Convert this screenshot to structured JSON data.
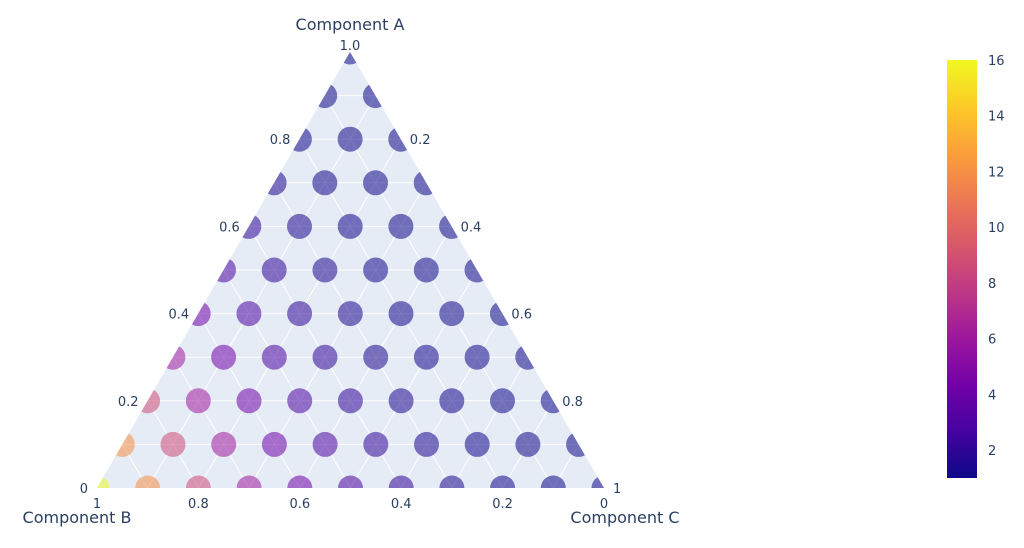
{
  "chart_data": {
    "type": "scatter",
    "subtype": "ternary",
    "axes": {
      "a": {
        "title": "Component A",
        "ticks": [
          "1.0",
          "0.8",
          "0.6",
          "0.4",
          "0.2",
          "0"
        ]
      },
      "b": {
        "title": "Component B",
        "ticks": [
          "1",
          "0.8",
          "0.6",
          "0.4",
          "0.2",
          "0"
        ]
      },
      "c": {
        "title": "Component C",
        "ticks": [
          "0.2",
          "0.4",
          "0.6",
          "0.8",
          "1"
        ]
      }
    },
    "grid": true,
    "grid_step": 0.1,
    "background": "#e5ecf6",
    "colorbar": {
      "ticks": [
        "16",
        "14",
        "12",
        "10",
        "8",
        "6",
        "4",
        "2"
      ],
      "range": [
        1,
        16
      ],
      "colorscale": [
        "#0d0887",
        "#46039f",
        "#7201a8",
        "#9c179e",
        "#bd3786",
        "#d8576b",
        "#ed7953",
        "#fb9f3a",
        "#fdca26",
        "#f0f921"
      ],
      "placement": "right"
    },
    "points": {
      "grid_step": 0.1,
      "opacity": 0.55,
      "value_rule": "value = 1 + 15 * b^3",
      "range": [
        1,
        16
      ]
    }
  }
}
